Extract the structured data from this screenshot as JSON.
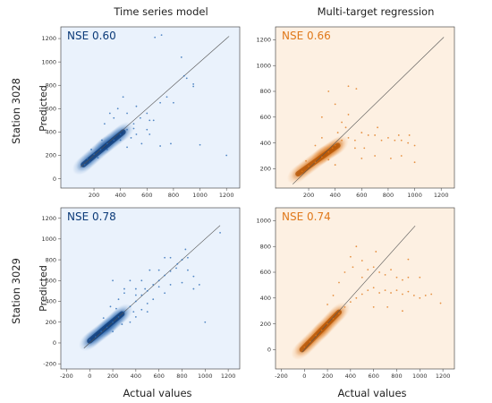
{
  "column_titles": [
    "Time series model",
    "Multi-target regression"
  ],
  "row_titles": [
    "Station 3028",
    "Station 3029"
  ],
  "x_axis_label": "Actual values",
  "y_axis_label": "Predicted",
  "colors": {
    "blue_dark": "#0b3a78",
    "blue_mid": "#2c6bb5",
    "blue_bg": "#eaf2fc",
    "orange_dark": "#b35200",
    "orange_mid": "#e0791b",
    "orange_bg": "#fdf0e2"
  },
  "chart_data": [
    {
      "type": "scatter",
      "panel": "Station 3028 / Time series model",
      "annotation": "NSE 0.60",
      "color": "blue",
      "xlim": [
        -50,
        1300
      ],
      "ylim": [
        -80,
        1300
      ],
      "xticks": [],
      "xticklabels": [],
      "yticks": [
        0,
        200,
        400,
        600,
        800,
        1000,
        1200
      ],
      "yticklabels": [
        "0",
        "200",
        "400",
        "600",
        "800",
        "1000",
        "1200"
      ],
      "xticks_unlabeled": [
        200,
        400,
        600,
        800,
        1000,
        1200
      ],
      "xticklabels_unlabeled": [
        "200",
        "400",
        "600",
        "800",
        "1000",
        "1200"
      ],
      "identity_line": [
        [
          100,
          100
        ],
        [
          1220,
          1220
        ]
      ],
      "points": [
        [
          150,
          170
        ],
        [
          200,
          210
        ],
        [
          250,
          250
        ],
        [
          300,
          300
        ],
        [
          350,
          330
        ],
        [
          400,
          380
        ],
        [
          450,
          420
        ],
        [
          500,
          470
        ],
        [
          550,
          520
        ],
        [
          600,
          560
        ],
        [
          650,
          500
        ],
        [
          700,
          650
        ],
        [
          380,
          600
        ],
        [
          420,
          700
        ],
        [
          520,
          620
        ],
        [
          560,
          300
        ],
        [
          600,
          420
        ],
        [
          750,
          700
        ],
        [
          800,
          650
        ],
        [
          880,
          880
        ],
        [
          900,
          860
        ],
        [
          950,
          790
        ],
        [
          450,
          270
        ],
        [
          480,
          350
        ],
        [
          320,
          560
        ],
        [
          280,
          470
        ],
        [
          500,
          430
        ],
        [
          620,
          380
        ],
        [
          700,
          280
        ],
        [
          780,
          300
        ],
        [
          1200,
          200
        ],
        [
          660,
          1210
        ],
        [
          710,
          1230
        ],
        [
          260,
          330
        ],
        [
          180,
          250
        ],
        [
          350,
          520
        ],
        [
          450,
          560
        ],
        [
          230,
          180
        ],
        [
          300,
          250
        ],
        [
          400,
          330
        ],
        [
          130,
          120
        ],
        [
          170,
          140
        ],
        [
          520,
          380
        ],
        [
          620,
          500
        ],
        [
          860,
          1040
        ],
        [
          950,
          810
        ],
        [
          1000,
          290
        ]
      ],
      "dense_core": [
        [
          120,
          120
        ],
        [
          280,
          280
        ],
        [
          420,
          400
        ]
      ],
      "regression_line": [
        [
          80,
          150
        ],
        [
          600,
          580
        ]
      ]
    },
    {
      "type": "scatter",
      "panel": "Station 3028 / Multi-target regression",
      "annotation": "NSE 0.66",
      "color": "orange",
      "xlim": [
        -50,
        1300
      ],
      "ylim": [
        50,
        1300
      ],
      "xticks": [
        200,
        400,
        600,
        800,
        1000,
        1200
      ],
      "xticklabels": [
        "200",
        "400",
        "600",
        "800",
        "1000",
        "1200"
      ],
      "yticks": [
        200,
        400,
        600,
        800,
        1000,
        1200
      ],
      "yticklabels": [
        "200",
        "400",
        "600",
        "800",
        "1000",
        "1200"
      ],
      "identity_line": [
        [
          80,
          80
        ],
        [
          1220,
          1220
        ]
      ],
      "points": [
        [
          150,
          180
        ],
        [
          200,
          220
        ],
        [
          250,
          250
        ],
        [
          300,
          290
        ],
        [
          350,
          330
        ],
        [
          400,
          380
        ],
        [
          450,
          420
        ],
        [
          500,
          440
        ],
        [
          550,
          420
        ],
        [
          600,
          480
        ],
        [
          650,
          460
        ],
        [
          700,
          460
        ],
        [
          750,
          420
        ],
        [
          800,
          440
        ],
        [
          850,
          420
        ],
        [
          900,
          420
        ],
        [
          950,
          400
        ],
        [
          1000,
          380
        ],
        [
          300,
          600
        ],
        [
          400,
          700
        ],
        [
          480,
          520
        ],
        [
          350,
          800
        ],
        [
          450,
          560
        ],
        [
          500,
          620
        ],
        [
          620,
          360
        ],
        [
          700,
          300
        ],
        [
          250,
          380
        ],
        [
          180,
          260
        ],
        [
          550,
          360
        ],
        [
          420,
          480
        ],
        [
          820,
          280
        ],
        [
          900,
          300
        ],
        [
          1000,
          250
        ],
        [
          500,
          840
        ],
        [
          560,
          820
        ],
        [
          300,
          440
        ],
        [
          380,
          360
        ],
        [
          600,
          280
        ],
        [
          720,
          520
        ],
        [
          880,
          460
        ],
        [
          960,
          460
        ],
        [
          400,
          230
        ],
        [
          350,
          270
        ]
      ],
      "dense_core": [
        [
          120,
          160
        ],
        [
          300,
          300
        ],
        [
          420,
          380
        ]
      ]
    },
    {
      "type": "scatter",
      "panel": "Station 3029 / Time series model",
      "annotation": "NSE 0.78",
      "color": "blue",
      "xlim": [
        -250,
        1300
      ],
      "ylim": [
        -250,
        1300
      ],
      "xticks": [
        -200,
        0,
        200,
        400,
        600,
        800,
        1000,
        1200
      ],
      "xticklabels": [
        "-200",
        "0",
        "200",
        "400",
        "600",
        "800",
        "1000",
        "1200"
      ],
      "yticks": [
        -200,
        0,
        200,
        400,
        600,
        800,
        1000,
        1200
      ],
      "yticklabels": [
        "-200",
        "0",
        "200",
        "400",
        "600",
        "800",
        "1000",
        "1200"
      ],
      "identity_line": [
        [
          -50,
          -50
        ],
        [
          1130,
          1130
        ]
      ],
      "points": [
        [
          0,
          30
        ],
        [
          50,
          60
        ],
        [
          100,
          110
        ],
        [
          150,
          150
        ],
        [
          200,
          200
        ],
        [
          250,
          250
        ],
        [
          300,
          300
        ],
        [
          350,
          350
        ],
        [
          400,
          400
        ],
        [
          450,
          460
        ],
        [
          500,
          500
        ],
        [
          550,
          560
        ],
        [
          600,
          600
        ],
        [
          650,
          650
        ],
        [
          700,
          690
        ],
        [
          750,
          720
        ],
        [
          800,
          800
        ],
        [
          850,
          820
        ],
        [
          900,
          640
        ],
        [
          950,
          560
        ],
        [
          1000,
          200
        ],
        [
          1130,
          1060
        ],
        [
          300,
          520
        ],
        [
          350,
          600
        ],
        [
          400,
          520
        ],
        [
          450,
          320
        ],
        [
          500,
          380
        ],
        [
          550,
          420
        ],
        [
          600,
          540
        ],
        [
          650,
          480
        ],
        [
          700,
          560
        ],
        [
          180,
          350
        ],
        [
          250,
          420
        ],
        [
          350,
          200
        ],
        [
          400,
          250
        ],
        [
          500,
          300
        ],
        [
          600,
          700
        ],
        [
          700,
          820
        ],
        [
          800,
          580
        ],
        [
          850,
          700
        ],
        [
          900,
          520
        ],
        [
          120,
          240
        ],
        [
          200,
          110
        ],
        [
          280,
          180
        ],
        [
          380,
          300
        ],
        [
          450,
          600
        ],
        [
          520,
          700
        ],
        [
          650,
          820
        ],
        [
          760,
          760
        ],
        [
          830,
          900
        ],
        [
          200,
          600
        ],
        [
          300,
          480
        ],
        [
          400,
          460
        ],
        [
          230,
          330
        ],
        [
          480,
          520
        ]
      ],
      "dense_core": [
        [
          0,
          20
        ],
        [
          150,
          150
        ],
        [
          280,
          280
        ]
      ]
    },
    {
      "type": "scatter",
      "panel": "Station 3029 / Multi-target regression",
      "annotation": "NSE 0.74",
      "color": "orange",
      "xlim": [
        -250,
        1300
      ],
      "ylim": [
        -150,
        1100
      ],
      "xticks": [
        -200,
        0,
        200,
        400,
        600,
        800,
        1000,
        1200
      ],
      "xticklabels": [
        "-200",
        "0",
        "200",
        "400",
        "600",
        "800",
        "1000",
        "1200"
      ],
      "yticks": [
        0,
        200,
        400,
        600,
        800,
        1000
      ],
      "yticklabels": [
        "0",
        "200",
        "400",
        "600",
        "800",
        "1000"
      ],
      "identity_line": [
        [
          -20,
          -20
        ],
        [
          960,
          960
        ]
      ],
      "points": [
        [
          0,
          20
        ],
        [
          50,
          60
        ],
        [
          100,
          110
        ],
        [
          150,
          150
        ],
        [
          200,
          200
        ],
        [
          250,
          240
        ],
        [
          300,
          280
        ],
        [
          350,
          330
        ],
        [
          400,
          370
        ],
        [
          450,
          400
        ],
        [
          500,
          430
        ],
        [
          550,
          460
        ],
        [
          600,
          480
        ],
        [
          650,
          440
        ],
        [
          700,
          460
        ],
        [
          750,
          440
        ],
        [
          800,
          460
        ],
        [
          850,
          430
        ],
        [
          900,
          450
        ],
        [
          950,
          420
        ],
        [
          1000,
          400
        ],
        [
          1050,
          420
        ],
        [
          1100,
          430
        ],
        [
          1180,
          360
        ],
        [
          500,
          560
        ],
        [
          550,
          620
        ],
        [
          600,
          640
        ],
        [
          650,
          600
        ],
        [
          700,
          580
        ],
        [
          750,
          620
        ],
        [
          800,
          560
        ],
        [
          850,
          540
        ],
        [
          900,
          560
        ],
        [
          400,
          720
        ],
        [
          450,
          800
        ],
        [
          500,
          690
        ],
        [
          620,
          760
        ],
        [
          300,
          520
        ],
        [
          350,
          600
        ],
        [
          420,
          640
        ],
        [
          200,
          350
        ],
        [
          250,
          420
        ],
        [
          900,
          700
        ],
        [
          1000,
          560
        ],
        [
          850,
          300
        ],
        [
          720,
          330
        ],
        [
          600,
          330
        ]
      ],
      "dense_core": [
        [
          -20,
          0
        ],
        [
          150,
          150
        ],
        [
          300,
          290
        ]
      ]
    }
  ]
}
